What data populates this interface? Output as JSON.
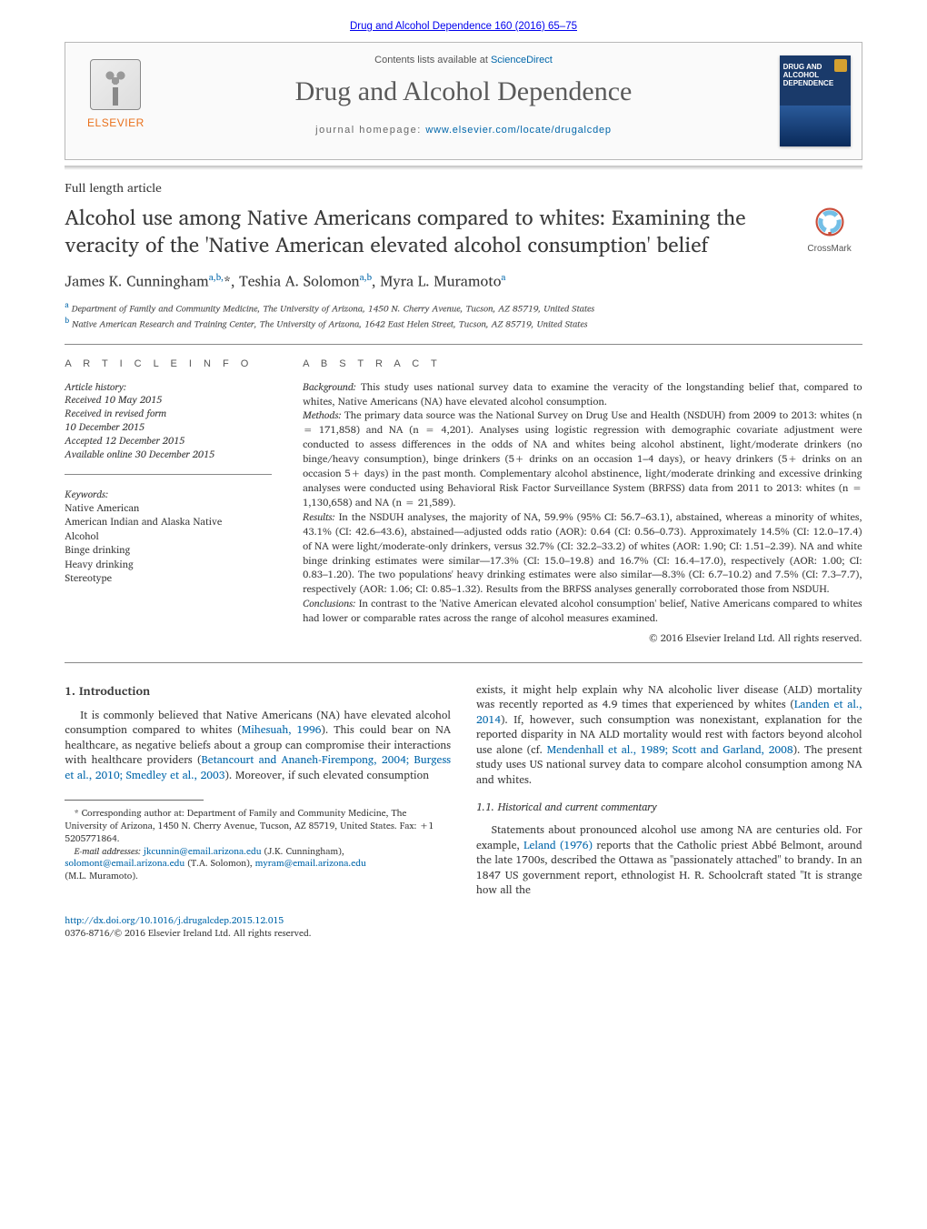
{
  "colors": {
    "link": "#0066aa",
    "text": "#3a3a3a",
    "elsevier_orange": "#e9711c",
    "rule": "#888888",
    "cover_bg_top": "#1a3a6a",
    "cover_bg_bottom": "#0a2a5a"
  },
  "header": {
    "citation_link_text": "Drug and Alcohol Dependence 160 (2016) 65–75",
    "contents_prefix": "Contents lists available at ",
    "contents_link": "ScienceDirect",
    "journal_name": "Drug and Alcohol Dependence",
    "homepage_prefix": "journal homepage: ",
    "homepage_link": "www.elsevier.com/locate/drugalcdep",
    "publisher_logo_label": "ELSEVIER",
    "cover_title_line1": "DRUG AND ALCOHOL",
    "cover_title_line2": "DEPENDENCE"
  },
  "crossmark_label": "CrossMark",
  "article": {
    "type": "Full length article",
    "title": "Alcohol use among Native Americans compared to whites: Examining the veracity of the 'Native American elevated alcohol consumption' belief",
    "authors_html": "James K. Cunningham<sup>a,b,</sup><span class='star'>*</span>, Teshia A. Solomon<sup>a,b</sup>, Myra L. Muramoto<sup>a</sup>",
    "affiliations": [
      {
        "sup": "a",
        "text": "Department of Family and Community Medicine, The University of Arizona, 1450 N. Cherry Avenue, Tucson, AZ 85719, United States"
      },
      {
        "sup": "b",
        "text": "Native American Research and Training Center, The University of Arizona, 1642 East Helen Street, Tucson, AZ 85719, United States"
      }
    ]
  },
  "info": {
    "heading": "A R T I C L E   I N F O",
    "history_label": "Article history:",
    "history": [
      "Received 10 May 2015",
      "Received in revised form",
      "10 December 2015",
      "Accepted 12 December 2015",
      "Available online 30 December 2015"
    ],
    "keywords_label": "Keywords:",
    "keywords": [
      "Native American",
      "American Indian and Alaska Native",
      "Alcohol",
      "Binge drinking",
      "Heavy drinking",
      "Stereotype"
    ]
  },
  "abstract": {
    "heading": "A B S T R A C T",
    "background_label": "Background:",
    "background": "This study uses national survey data to examine the veracity of the longstanding belief that, compared to whites, Native Americans (NA) have elevated alcohol consumption.",
    "methods_label": "Methods:",
    "methods": "The primary data source was the National Survey on Drug Use and Health (NSDUH) from 2009 to 2013: whites (n = 171,858) and NA (n = 4,201). Analyses using logistic regression with demographic covariate adjustment were conducted to assess differences in the odds of NA and whites being alcohol abstinent, light/moderate drinkers (no binge/heavy consumption), binge drinkers (5+ drinks on an occasion 1–4 days), or heavy drinkers (5+ drinks on an occasion 5+ days) in the past month. Complementary alcohol abstinence, light/moderate drinking and excessive drinking analyses were conducted using Behavioral Risk Factor Surveillance System (BRFSS) data from 2011 to 2013: whites (n = 1,130,658) and NA (n = 21,589).",
    "results_label": "Results:",
    "results": "In the NSDUH analyses, the majority of NA, 59.9% (95% CI: 56.7–63.1), abstained, whereas a minority of whites, 43.1% (CI: 42.6–43.6), abstained—adjusted odds ratio (AOR): 0.64 (CI: 0.56–0.73). Approximately 14.5% (CI: 12.0–17.4) of NA were light/moderate-only drinkers, versus 32.7% (CI: 32.2–33.2) of whites (AOR: 1.90; CI: 1.51–2.39). NA and white binge drinking estimates were similar—17.3% (CI: 15.0–19.8) and 16.7% (CI: 16.4–17.0), respectively (AOR: 1.00; CI: 0.83–1.20). The two populations' heavy drinking estimates were also similar—8.3% (CI: 6.7–10.2) and 7.5% (CI: 7.3–7.7), respectively (AOR: 1.06; CI: 0.85–1.32). Results from the BRFSS analyses generally corroborated those from NSDUH.",
    "conclusions_label": "Conclusions:",
    "conclusions": "In contrast to the 'Native American elevated alcohol consumption' belief, Native Americans compared to whites had lower or comparable rates across the range of alcohol measures examined.",
    "copyright": "© 2016 Elsevier Ireland Ltd. All rights reserved."
  },
  "body": {
    "intro_heading": "1.  Introduction",
    "intro_p1_pre": "It is commonly believed that Native Americans (NA) have elevated alcohol consumption compared to whites (",
    "intro_p1_cite1": "Mihesuah, 1996",
    "intro_p1_mid": "). This could bear on NA healthcare, as negative beliefs about a group can compromise their interactions with healthcare providers (",
    "intro_p1_cite2": "Betancourt and Ananeh-Firempong, 2004; Burgess et al., 2010; Smedley et al., 2003",
    "intro_p1_post": "). Moreover, if such elevated consumption",
    "col2_p1_pre": "exists, it might help explain why NA alcoholic liver disease (ALD) mortality was recently reported as 4.9 times that experienced by whites (",
    "col2_p1_cite1": "Landen et al., 2014",
    "col2_p1_mid": "). If, however, such consumption was nonexistant, explanation for the reported disparity in NA ALD mortality would rest with factors beyond alcohol use alone (cf. ",
    "col2_p1_cite2": "Mendenhall et al., 1989; Scott and Garland, 2008",
    "col2_p1_post": "). The present study uses US national survey data to compare alcohol consumption among NA and whites.",
    "hist_heading": "1.1. Historical and current commentary",
    "hist_p1_pre": "Statements about pronounced alcohol use among NA are centuries old. For example, ",
    "hist_p1_cite": "Leland (1976)",
    "hist_p1_post": " reports that the Catholic priest Abbé Belmont, around the late 1700s, described the Ottawa as \"passionately attached\" to brandy. In an 1847 US government report, ethnologist H. R. Schoolcraft stated \"It is strange how all the"
  },
  "footnotes": {
    "corresp_pre": "* Corresponding author at: Department of Family and Community Medicine, The University of Arizona, 1450 N. Cherry Avenue, Tucson, AZ 85719, United States. Fax: +1 5205771864.",
    "emails_label": "E-mail addresses:",
    "emails": [
      {
        "addr": "jkcunnin@email.arizona.edu",
        "who": "(J.K. Cunningham),"
      },
      {
        "addr": "solomont@email.arizona.edu",
        "who": "(T.A. Solomon),"
      },
      {
        "addr": "myram@email.arizona.edu",
        "who": ""
      }
    ],
    "emails_tail": "(M.L. Muramoto)."
  },
  "footer": {
    "doi": "http://dx.doi.org/10.1016/j.drugalcdep.2015.12.015",
    "issn_line": "0376-8716/© 2016 Elsevier Ireland Ltd. All rights reserved."
  }
}
